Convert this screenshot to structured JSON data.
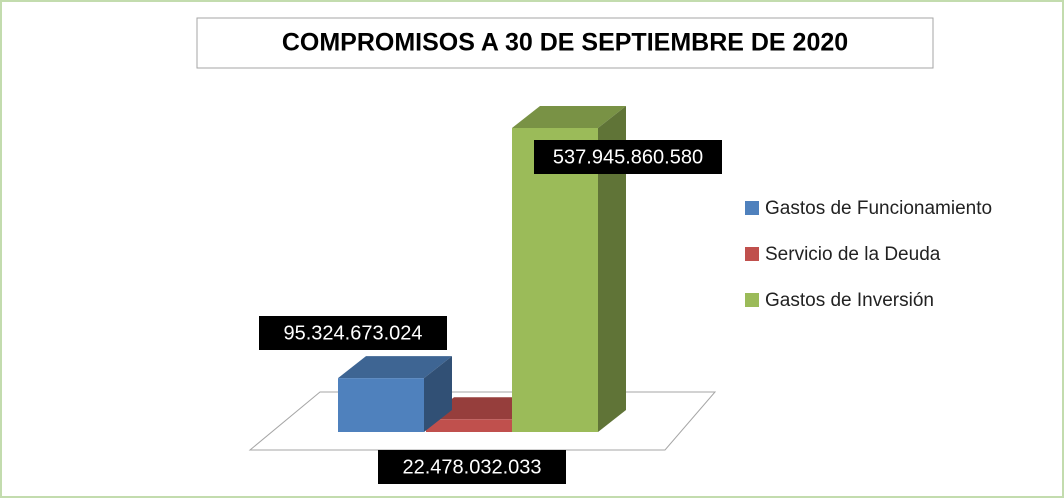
{
  "chart_data": {
    "type": "bar3d",
    "title": "COMPROMISOS A  30 DE SEPTIEMBRE DE 2020",
    "series": [
      {
        "name": "Gastos de Funcionamiento",
        "color": "#4f81bd",
        "values": [
          95324673024
        ],
        "value_labels": [
          "95.324.673.024"
        ]
      },
      {
        "name": "Servicio de la Deuda",
        "color": "#c0504d",
        "values": [
          22478032033
        ],
        "value_labels": [
          "22.478.032.033"
        ]
      },
      {
        "name": "Gastos de Inversión",
        "color": "#9bbb59",
        "values": [
          537945860580
        ],
        "value_labels": [
          "537.945.860.580"
        ]
      }
    ],
    "legend": "right"
  }
}
